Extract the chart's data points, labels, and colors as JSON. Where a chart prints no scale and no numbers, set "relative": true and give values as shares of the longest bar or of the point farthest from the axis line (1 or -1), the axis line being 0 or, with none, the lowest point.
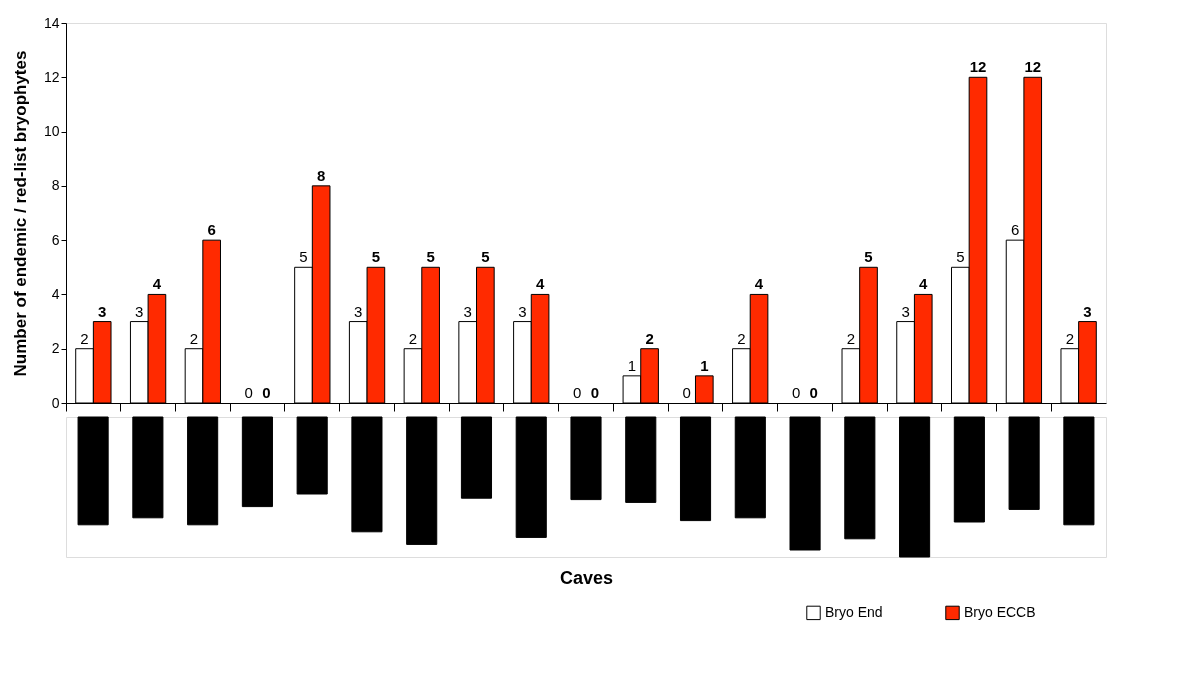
{
  "chart_data": [
    {
      "type": "bar",
      "ylabel": "Number of endemic / red-list bryophytes",
      "categories": [
        null,
        null,
        null,
        null,
        null,
        null,
        null,
        null,
        null,
        null,
        null,
        null,
        null,
        null,
        null,
        null,
        null,
        null,
        null
      ],
      "series": [
        {
          "name": "Bryo End",
          "color": "#ffffff",
          "values": [
            2,
            3,
            2,
            0,
            5,
            3,
            2,
            3,
            3,
            0,
            1,
            0,
            2,
            0,
            2,
            3,
            5,
            6,
            2
          ]
        },
        {
          "name": "Bryo ECCB",
          "color": "#ff2a00",
          "values": [
            3,
            4,
            6,
            0,
            8,
            5,
            5,
            5,
            4,
            0,
            2,
            1,
            4,
            0,
            5,
            4,
            12,
            12,
            3
          ]
        }
      ],
      "ylim": [
        0,
        14
      ],
      "yticks": [
        0,
        2,
        4,
        6,
        8,
        10,
        12,
        14
      ],
      "data_labels": true,
      "legend": "bottom right"
    },
    {
      "type": "bar",
      "xlabel": "Caves",
      "relative": true,
      "color": "#000000",
      "categories": [
        null,
        null,
        null,
        null,
        null,
        null,
        null,
        null,
        null,
        null,
        null,
        null,
        null,
        null,
        null,
        null,
        null,
        null,
        null
      ],
      "values": [
        -0.77,
        -0.72,
        -0.77,
        -0.64,
        -0.55,
        -0.82,
        -0.91,
        -0.58,
        -0.86,
        -0.59,
        -0.61,
        -0.74,
        -0.72,
        -0.95,
        -0.87,
        -1,
        -0.75,
        -0.66,
        -0.77
      ]
    }
  ]
}
